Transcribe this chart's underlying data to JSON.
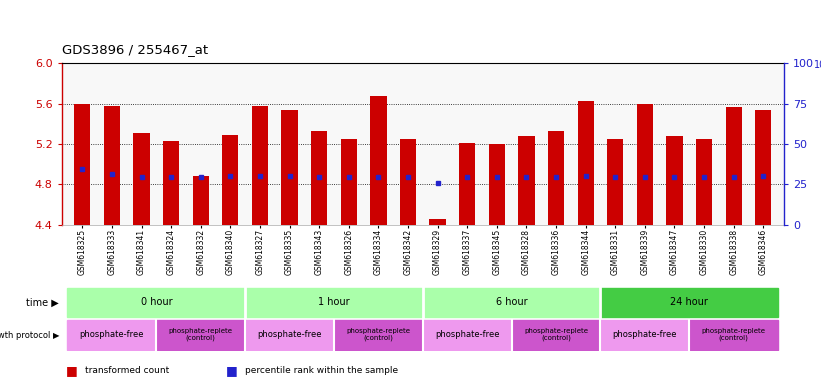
{
  "title": "GDS3896 / 255467_at",
  "samples": [
    "GSM618325",
    "GSM618333",
    "GSM618341",
    "GSM618324",
    "GSM618332",
    "GSM618340",
    "GSM618327",
    "GSM618335",
    "GSM618343",
    "GSM618326",
    "GSM618334",
    "GSM618342",
    "GSM618329",
    "GSM618337",
    "GSM618345",
    "GSM618328",
    "GSM618336",
    "GSM618344",
    "GSM618331",
    "GSM618339",
    "GSM618347",
    "GSM618330",
    "GSM618338",
    "GSM618346"
  ],
  "bar_tops": [
    5.6,
    5.58,
    5.31,
    5.23,
    4.88,
    5.29,
    5.58,
    5.54,
    5.33,
    5.25,
    5.68,
    5.25,
    4.46,
    5.21,
    5.2,
    5.28,
    5.33,
    5.63,
    5.25,
    5.6,
    5.28,
    5.25,
    5.57,
    5.54
  ],
  "bar_base": 4.4,
  "blue_dot_values": [
    4.95,
    4.9,
    4.87,
    4.87,
    4.87,
    4.88,
    4.88,
    4.88,
    4.87,
    4.87,
    4.87,
    4.87,
    4.81,
    4.87,
    4.87,
    4.87,
    4.87,
    4.88,
    4.87,
    4.87,
    4.87,
    4.87,
    4.87,
    4.88
  ],
  "bar_color": "#cc0000",
  "blue_color": "#2222cc",
  "ylim_left": [
    4.4,
    6.0
  ],
  "ylim_right": [
    0,
    100
  ],
  "yticks_left": [
    4.4,
    4.8,
    5.2,
    5.6,
    6.0
  ],
  "yticks_right": [
    0,
    25,
    50,
    75,
    100
  ],
  "grid_lines": [
    4.8,
    5.2,
    5.6
  ],
  "time_labels": [
    "0 hour",
    "1 hour",
    "6 hour",
    "24 hour"
  ],
  "time_boundaries": [
    0,
    6,
    12,
    18,
    24
  ],
  "time_color_light": "#aaffaa",
  "time_color_dark": "#44cc44",
  "prot_free_color": "#ee99ee",
  "prot_replete_color": "#cc55cc",
  "prot_boundaries": [
    0,
    3,
    6,
    9,
    12,
    15,
    18,
    21,
    24
  ],
  "bar_width": 0.55,
  "bg_color": "#f0f0f0"
}
